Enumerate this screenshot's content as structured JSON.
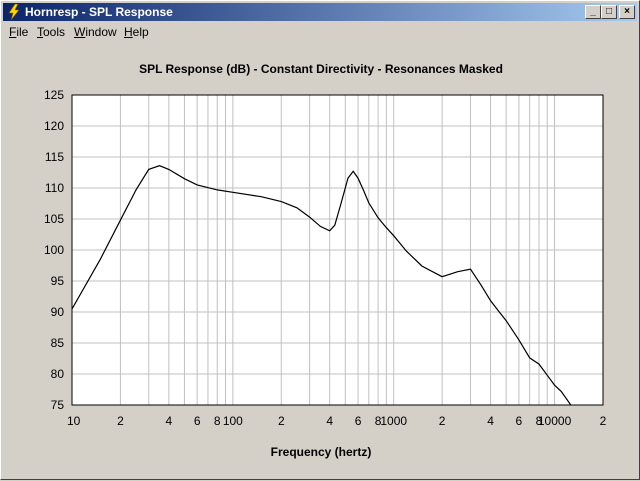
{
  "window": {
    "title": "Hornresp - SPL Response",
    "controls": {
      "minimize": "_",
      "maximize": "□",
      "close": "×"
    }
  },
  "menu": [
    {
      "label": "File",
      "accel": "F",
      "rest": "ile"
    },
    {
      "label": "Tools",
      "accel": "T",
      "rest": "ools"
    },
    {
      "label": "Window",
      "accel": "W",
      "rest": "indow"
    },
    {
      "label": "Help",
      "accel": "H",
      "rest": "elp"
    }
  ],
  "icons": {
    "app": "lightning-bolt-icon"
  },
  "colors": {
    "titlebar_start": "#0a246a",
    "titlebar_end": "#a6caf0",
    "curve": "#000000",
    "grid": "#c0c0c0"
  },
  "chart_data": {
    "type": "line",
    "title": "SPL Response (dB) - Constant Directivity - Resonances Masked",
    "xlabel": "Frequency (hertz)",
    "ylabel": "",
    "xscale": "log",
    "xlim": [
      10,
      20000
    ],
    "ylim": [
      75,
      125
    ],
    "yticks": [
      75,
      80,
      85,
      90,
      95,
      100,
      105,
      110,
      115,
      120,
      125
    ],
    "xtick_labels": [
      {
        "value": 10,
        "label": "10"
      },
      {
        "value": 20,
        "label": "2"
      },
      {
        "value": 40,
        "label": "4"
      },
      {
        "value": 60,
        "label": "6"
      },
      {
        "value": 80,
        "label": "8"
      },
      {
        "value": 100,
        "label": "100"
      },
      {
        "value": 200,
        "label": "2"
      },
      {
        "value": 400,
        "label": "4"
      },
      {
        "value": 600,
        "label": "6"
      },
      {
        "value": 800,
        "label": "8"
      },
      {
        "value": 1000,
        "label": "1000"
      },
      {
        "value": 2000,
        "label": "2"
      },
      {
        "value": 4000,
        "label": "4"
      },
      {
        "value": 6000,
        "label": "6"
      },
      {
        "value": 8000,
        "label": "8"
      },
      {
        "value": 10000,
        "label": "10000"
      },
      {
        "value": 20000,
        "label": "2"
      }
    ],
    "grid": true,
    "series": [
      {
        "x": [
          10,
          15,
          20,
          25,
          30,
          35,
          40,
          50,
          60,
          80,
          100,
          150,
          200,
          250,
          300,
          350,
          400,
          430,
          470,
          520,
          560,
          600,
          650,
          700,
          800,
          900,
          1000,
          1200,
          1500,
          2000,
          2500,
          3000,
          3500,
          4000,
          4500,
          5000,
          6000,
          7000,
          8000,
          9000,
          10000,
          11000,
          12000,
          13000
        ],
        "y": [
          90.5,
          98.5,
          104.8,
          109.7,
          113,
          113.6,
          113,
          111.5,
          110.5,
          109.7,
          109.3,
          108.6,
          107.8,
          106.8,
          105.3,
          103.8,
          103.1,
          104,
          107.5,
          111.6,
          112.7,
          111.6,
          109.6,
          107.6,
          105.2,
          103.6,
          102.3,
          99.8,
          97.4,
          95.7,
          96.5,
          96.9,
          94.3,
          91.8,
          90.1,
          88.6,
          85.5,
          82.6,
          81.6,
          79.8,
          78.2,
          77.2,
          75.8,
          74.5
        ]
      }
    ]
  }
}
